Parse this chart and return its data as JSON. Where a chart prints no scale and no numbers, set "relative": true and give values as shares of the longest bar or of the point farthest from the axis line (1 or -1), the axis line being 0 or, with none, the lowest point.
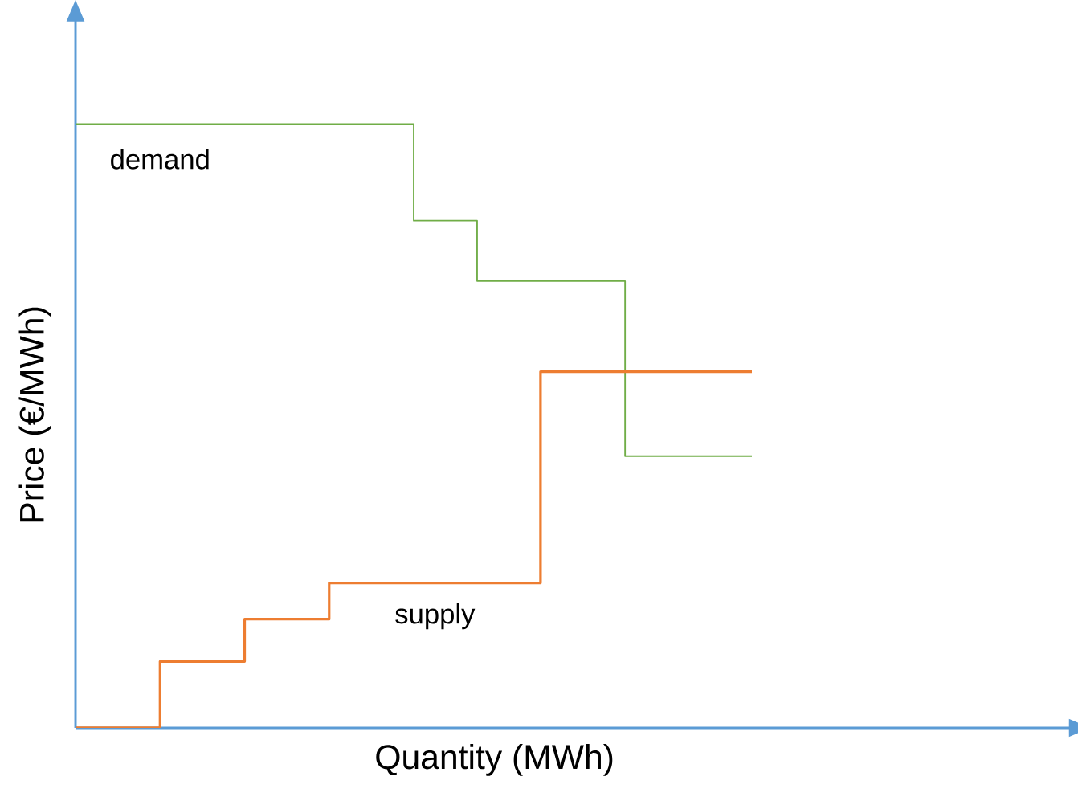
{
  "chart_data": {
    "type": "step",
    "relative": true,
    "xlabel": "Quantity (MWh)",
    "ylabel": "Price (€/MWh)",
    "categories": [
      null,
      null,
      null,
      null,
      null,
      null,
      null,
      null,
      null,
      null,
      null,
      null,
      null,
      null,
      null,
      null,
      null,
      null,
      null,
      null,
      null,
      null,
      null,
      null,
      null,
      null,
      null,
      null,
      null,
      null,
      null,
      null,
      null
    ],
    "series": [
      {
        "name": "demand",
        "color": "#70ad47",
        "values": [
          1,
          1,
          1,
          1,
          1,
          1,
          1,
          1,
          1,
          1,
          1,
          1,
          1,
          1,
          1,
          1,
          0.84,
          0.84,
          0.84,
          0.74,
          0.74,
          0.74,
          0.74,
          0.74,
          0.74,
          0.74,
          0.45,
          0.45,
          0.45,
          0.45,
          0.45,
          0.45,
          0.45
        ]
      },
      {
        "name": "supply",
        "color": "#ed7d31",
        "values": [
          0,
          0,
          0,
          0,
          0.11,
          0.11,
          0.11,
          0.11,
          0.18,
          0.18,
          0.18,
          0.18,
          0.24,
          0.24,
          0.24,
          0.24,
          0.24,
          0.24,
          0.24,
          0.24,
          0.24,
          0.24,
          0.59,
          0.59,
          0.59,
          0.59,
          0.59,
          0.59,
          0.59,
          0.59,
          0.59,
          0.59,
          0.59
        ]
      }
    ]
  }
}
